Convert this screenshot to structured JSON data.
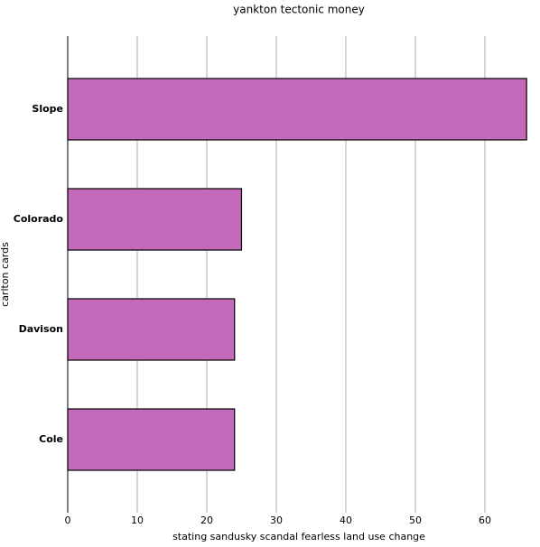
{
  "chart_data": {
    "type": "bar",
    "orientation": "horizontal",
    "title": "yankton tectonic money",
    "xlabel": "stating sandusky scandal fearless land use change",
    "ylabel": "carlton cards",
    "categories": [
      "Slope",
      "Colorado",
      "Davison",
      "Cole"
    ],
    "values": [
      66,
      25,
      24,
      24
    ],
    "color": "#c36bba",
    "xlim": [
      0,
      66.5
    ],
    "xticks": [
      0,
      10,
      20,
      30,
      40,
      50,
      60
    ],
    "grid": true
  }
}
